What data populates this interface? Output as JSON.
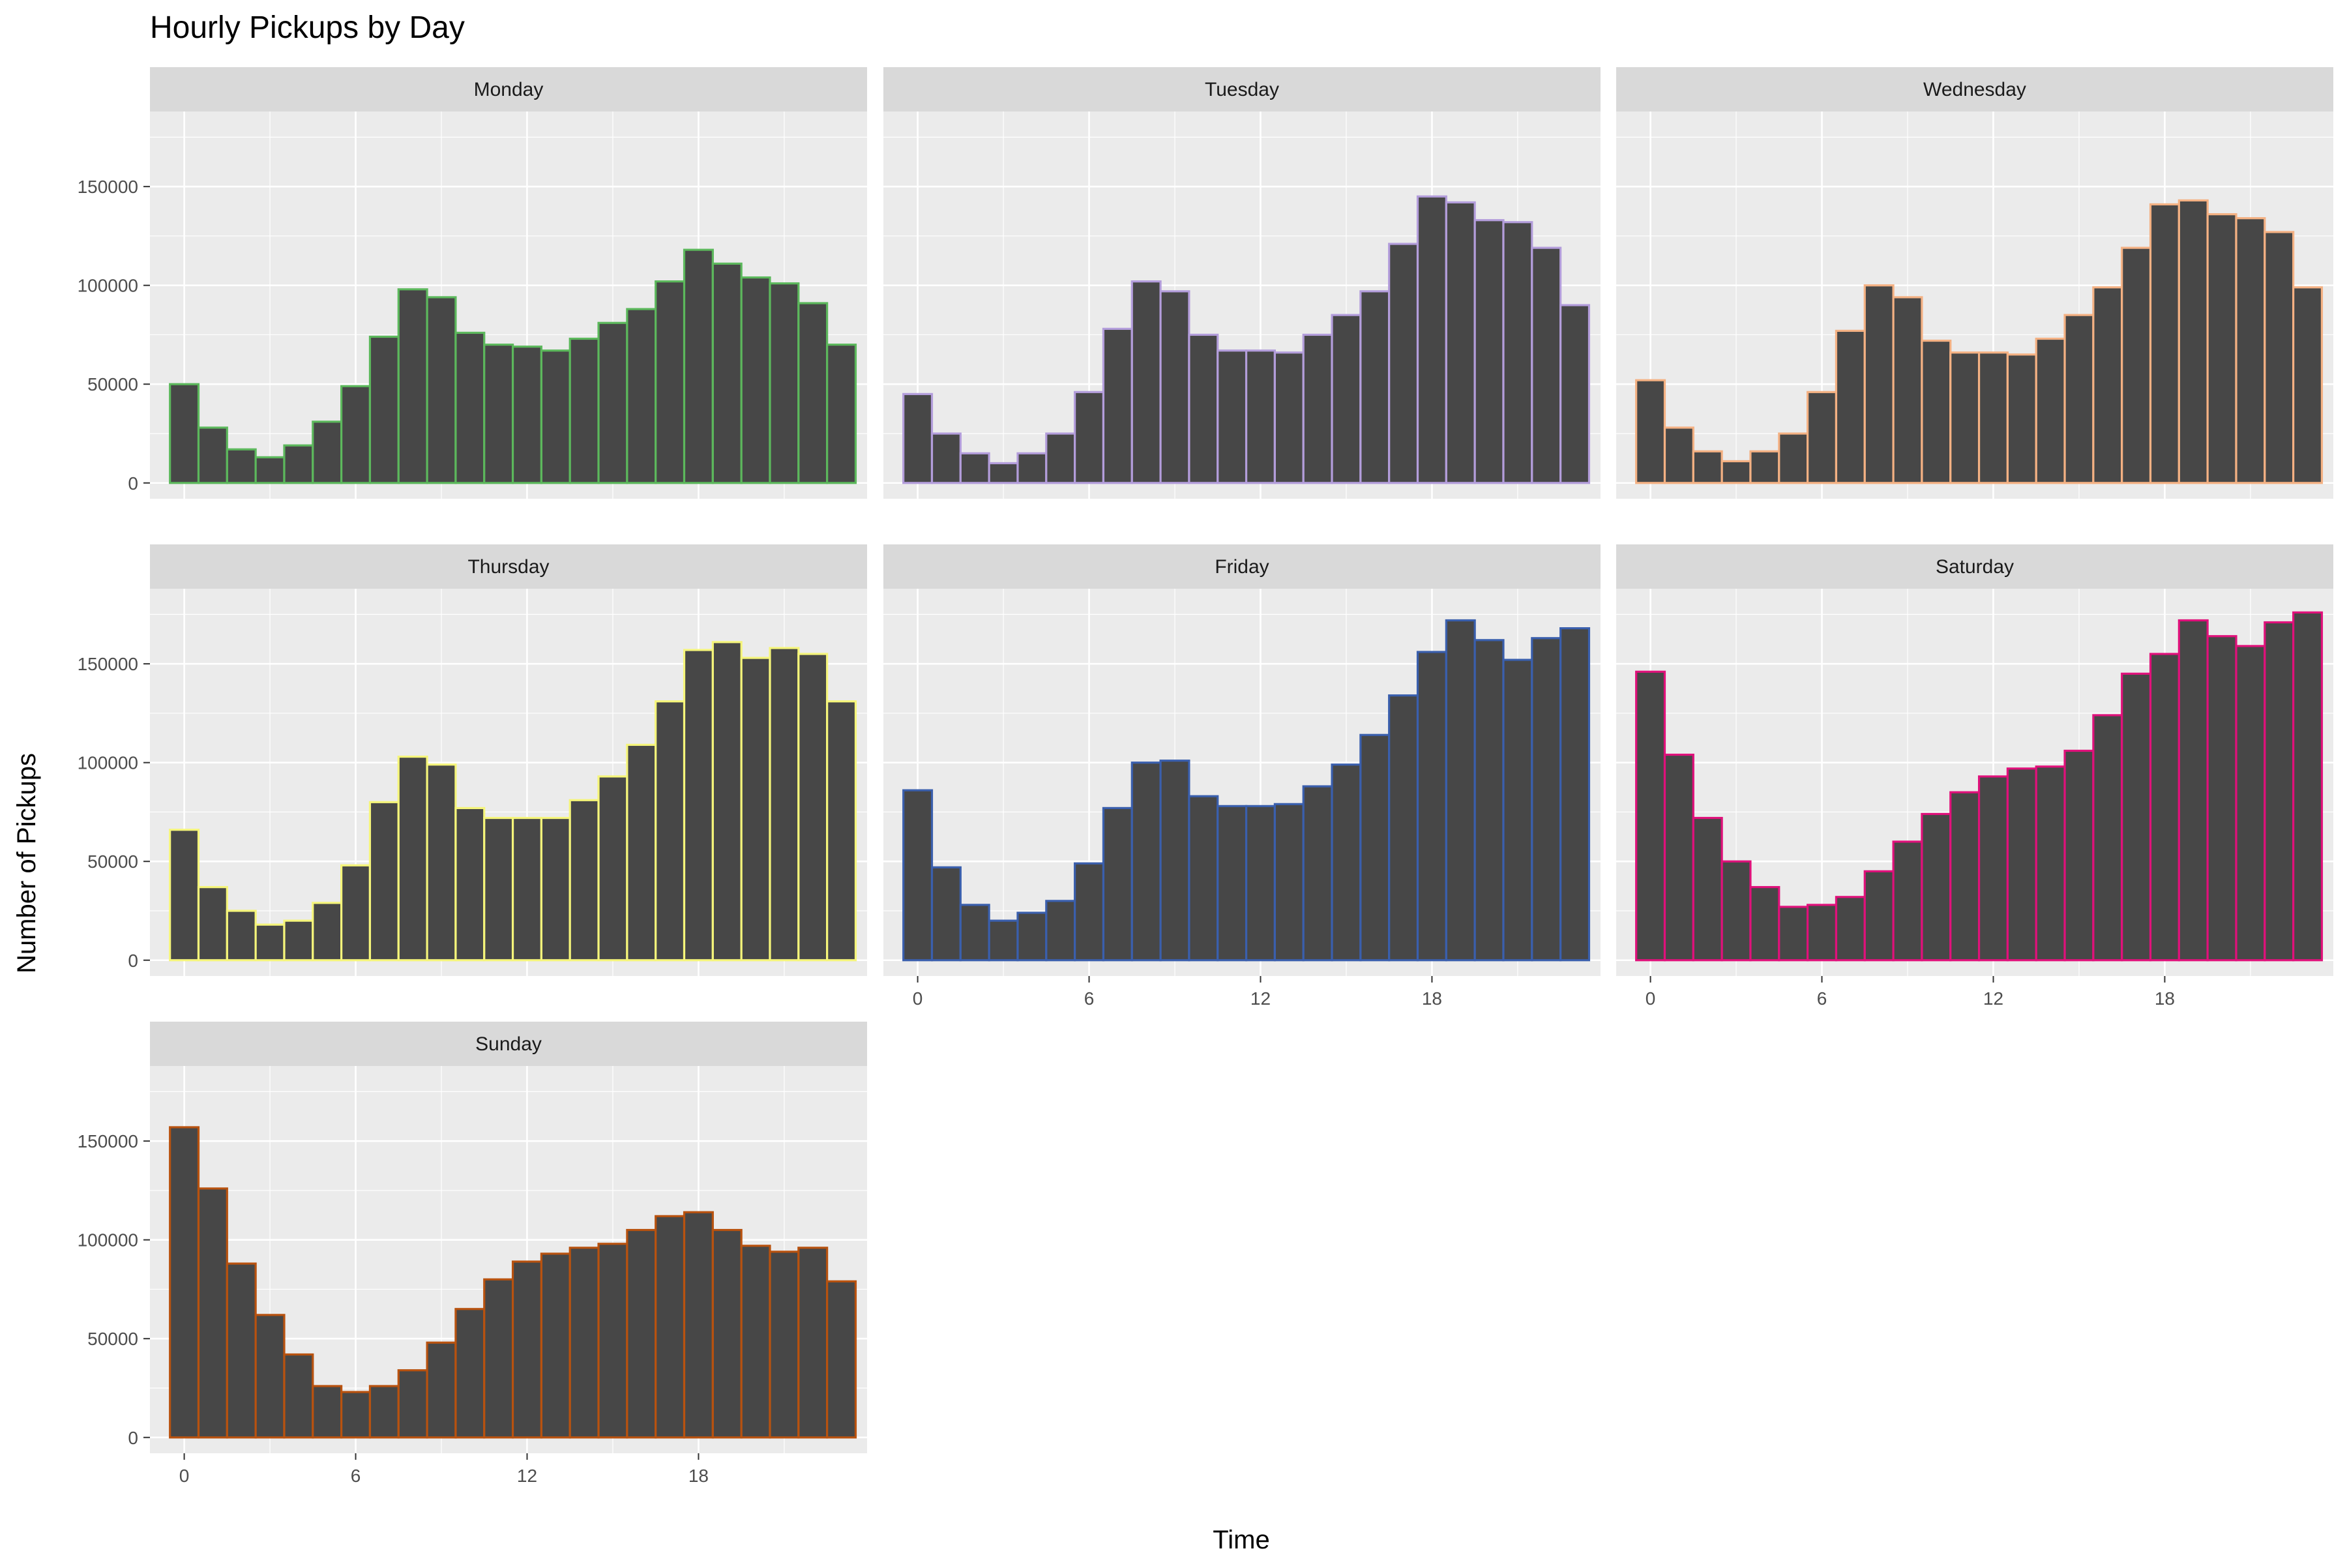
{
  "chart_data": {
    "type": "bar",
    "title": "Hourly Pickups by Day",
    "xlabel": "Time",
    "ylabel": "Number of Pickups",
    "ylim": [
      -8000,
      188000
    ],
    "xlim": [
      -1.2,
      23.9
    ],
    "x_ticks": [
      0,
      6,
      12,
      18
    ],
    "x_tick_labels": [
      "0",
      "6",
      "12",
      "18"
    ],
    "y_ticks": [
      0,
      50000,
      100000,
      150000
    ],
    "y_tick_labels": [
      "0",
      "50000",
      "100000",
      "150000"
    ],
    "grid": true,
    "hours": [
      0,
      1,
      2,
      3,
      4,
      5,
      6,
      7,
      8,
      9,
      10,
      11,
      12,
      13,
      14,
      15,
      16,
      17,
      18,
      19,
      20,
      21,
      22,
      23
    ],
    "panels": [
      {
        "name": "Monday",
        "outline": "#5cb85c",
        "values": [
          50000,
          28000,
          17000,
          13000,
          19000,
          31000,
          49000,
          74000,
          98000,
          94000,
          76000,
          70000,
          69000,
          67000,
          73000,
          81000,
          88000,
          102000,
          118000,
          111000,
          104000,
          101000,
          91000,
          70000
        ]
      },
      {
        "name": "Tuesday",
        "outline": "#b39ddb",
        "values": [
          45000,
          25000,
          15000,
          10000,
          15000,
          25000,
          46000,
          78000,
          102000,
          97000,
          75000,
          67000,
          67000,
          66000,
          75000,
          85000,
          97000,
          121000,
          145000,
          142000,
          133000,
          132000,
          119000,
          90000
        ]
      },
      {
        "name": "Wednesday",
        "outline": "#f4b183",
        "values": [
          52000,
          28000,
          16000,
          11000,
          16000,
          25000,
          46000,
          77000,
          100000,
          94000,
          72000,
          66000,
          66000,
          65000,
          73000,
          85000,
          99000,
          119000,
          141000,
          143000,
          136000,
          134000,
          127000,
          99000
        ]
      },
      {
        "name": "Thursday",
        "outline": "#f5f57a",
        "values": [
          66000,
          37000,
          25000,
          18000,
          20000,
          29000,
          48000,
          80000,
          103000,
          99000,
          77000,
          72000,
          72000,
          72000,
          81000,
          93000,
          109000,
          131000,
          157000,
          161000,
          153000,
          158000,
          155000,
          131000
        ]
      },
      {
        "name": "Friday",
        "outline": "#3a5fad",
        "values": [
          86000,
          47000,
          28000,
          20000,
          24000,
          30000,
          49000,
          77000,
          100000,
          101000,
          83000,
          78000,
          78000,
          79000,
          88000,
          99000,
          114000,
          134000,
          156000,
          172000,
          162000,
          152000,
          163000,
          168000
        ]
      },
      {
        "name": "Saturday",
        "outline": "#e0117b",
        "values": [
          146000,
          104000,
          72000,
          50000,
          37000,
          27000,
          28000,
          32000,
          45000,
          60000,
          74000,
          85000,
          93000,
          97000,
          98000,
          106000,
          124000,
          145000,
          155000,
          172000,
          164000,
          159000,
          171000,
          176000
        ]
      },
      {
        "name": "Sunday",
        "outline": "#b8520f",
        "values": [
          157000,
          126000,
          88000,
          62000,
          42000,
          26000,
          23000,
          26000,
          34000,
          48000,
          65000,
          80000,
          89000,
          93000,
          96000,
          98000,
          105000,
          112000,
          114000,
          105000,
          97000,
          94000,
          96000,
          79000
        ]
      }
    ]
  }
}
